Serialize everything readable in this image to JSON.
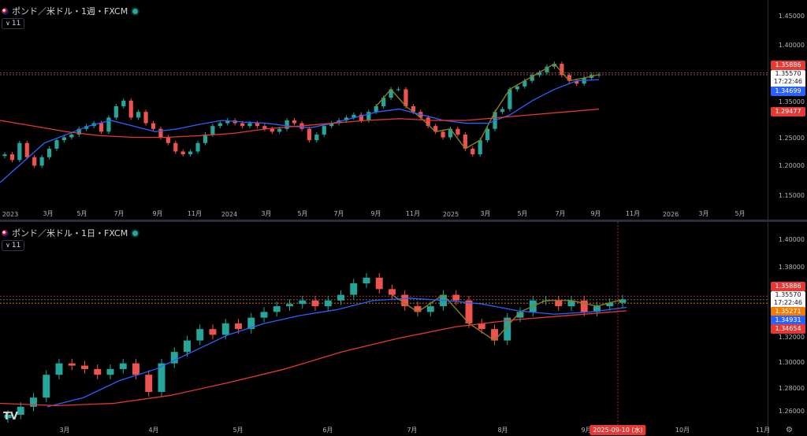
{
  "colors": {
    "background": "#000000",
    "up": "#26a69a",
    "down": "#ef5350",
    "ma_blue": "#2962ff",
    "ma_red": "#e53935",
    "zigzag": "#8b7d1a",
    "price_line": "#e53935"
  },
  "top_pane": {
    "title": "ポンド／米ドル・1週・FXCM",
    "indicator_count": "11",
    "price_axis": [
      "1.45000",
      "1.40000",
      "1.35000",
      "1.30000",
      "1.25000",
      "1.20000",
      "1.15000"
    ],
    "price_tags": {
      "resistance": "1.35886",
      "current": "1.35570",
      "countdown": "17:22:46",
      "ma_short": "1.34699",
      "ma_long": "1.29477"
    },
    "time_axis": [
      "2023",
      "3月",
      "5月",
      "7月",
      "9月",
      "11月",
      "2024",
      "3月",
      "5月",
      "7月",
      "9月",
      "11月",
      "2025",
      "3月",
      "5月",
      "7月",
      "9月",
      "11月",
      "2026",
      "3月",
      "5月"
    ]
  },
  "bottom_pane": {
    "title": "ポンド／米ドル・1日・FXCM",
    "indicator_count": "11",
    "price_axis": [
      "1.40000",
      "1.38000",
      "1.36000",
      "1.34000",
      "1.32000",
      "1.30000",
      "1.28000",
      "1.26000"
    ],
    "price_tags": {
      "resistance": "1.35886",
      "current": "1.35570",
      "countdown": "17:22:46",
      "level_orange": "1.35271",
      "ma_short": "1.34931",
      "ma_long": "1.34654"
    },
    "time_axis": [
      "3月",
      "4月",
      "5月",
      "6月",
      "7月",
      "8月",
      "9月",
      "10月",
      "11月"
    ],
    "cursor_date": "2025-09-10 (水)"
  },
  "chart_data": [
    {
      "type": "candlestick",
      "title": "ポンド／米ドル・1週・FXCM",
      "ylim": [
        1.14,
        1.46
      ],
      "x_start": "2023",
      "x_end": "2026-05",
      "series": [
        {
          "name": "weekly close (approx.)",
          "values": [
            1.215,
            1.205,
            1.235,
            1.21,
            1.195,
            1.21,
            1.225,
            1.24,
            1.245,
            1.25,
            1.26,
            1.265,
            1.27,
            1.255,
            1.28,
            1.3,
            1.31,
            1.28,
            1.29,
            1.27,
            1.26,
            1.245,
            1.235,
            1.22,
            1.215,
            1.22,
            1.235,
            1.25,
            1.265,
            1.27,
            1.275,
            1.27,
            1.265,
            1.27,
            1.265,
            1.26,
            1.255,
            1.26,
            1.275,
            1.27,
            1.26,
            1.24,
            1.25,
            1.265,
            1.27,
            1.275,
            1.28,
            1.285,
            1.275,
            1.29,
            1.3,
            1.315,
            1.33,
            1.33,
            1.3,
            1.29,
            1.28,
            1.265,
            1.255,
            1.245,
            1.26,
            1.25,
            1.225,
            1.215,
            1.24,
            1.26,
            1.29,
            1.295,
            1.33,
            1.335,
            1.345,
            1.355,
            1.36,
            1.37,
            1.375,
            1.355,
            1.345,
            1.34,
            1.35,
            1.355,
            1.356
          ]
        },
        {
          "name": "MA short",
          "values": [
            1.165,
            1.2,
            1.235,
            1.25,
            1.265,
            1.275,
            1.265,
            1.255,
            1.26,
            1.268,
            1.275,
            1.272,
            1.27,
            1.265,
            1.262,
            1.27,
            1.28,
            1.29,
            1.295,
            1.285,
            1.275,
            1.27,
            1.27,
            1.285,
            1.31,
            1.33,
            1.345,
            1.347
          ]
        },
        {
          "name": "MA long",
          "values": [
            1.275,
            1.265,
            1.255,
            1.248,
            1.245,
            1.245,
            1.248,
            1.252,
            1.26,
            1.265,
            1.27,
            1.275,
            1.278,
            1.275,
            1.275,
            1.28,
            1.285,
            1.29,
            1.295
          ]
        }
      ]
    },
    {
      "type": "candlestick",
      "title": "ポンド／米ドル・1日・FXCM",
      "ylim": [
        1.255,
        1.41
      ],
      "x_start": "2025-02",
      "x_end": "2025-11",
      "series": [
        {
          "name": "daily close (approx.)",
          "values": [
            1.255,
            1.262,
            1.27,
            1.29,
            1.3,
            1.298,
            1.295,
            1.29,
            1.295,
            1.3,
            1.29,
            1.275,
            1.3,
            1.31,
            1.32,
            1.33,
            1.325,
            1.335,
            1.33,
            1.34,
            1.345,
            1.35,
            1.352,
            1.355,
            1.35,
            1.355,
            1.36,
            1.37,
            1.375,
            1.365,
            1.36,
            1.35,
            1.345,
            1.35,
            1.36,
            1.355,
            1.335,
            1.33,
            1.32,
            1.34,
            1.345,
            1.355,
            1.355,
            1.35,
            1.355,
            1.345,
            1.35,
            1.353,
            1.356
          ]
        },
        {
          "name": "MA short",
          "values": [
            1.262,
            1.27,
            1.285,
            1.295,
            1.31,
            1.325,
            1.335,
            1.342,
            1.347,
            1.355,
            1.357,
            1.355,
            1.352,
            1.346,
            1.343,
            1.345,
            1.349
          ]
        },
        {
          "name": "MA long",
          "values": [
            1.265,
            1.263,
            1.265,
            1.272,
            1.283,
            1.295,
            1.31,
            1.322,
            1.332,
            1.338,
            1.342,
            1.346
          ]
        }
      ]
    }
  ]
}
